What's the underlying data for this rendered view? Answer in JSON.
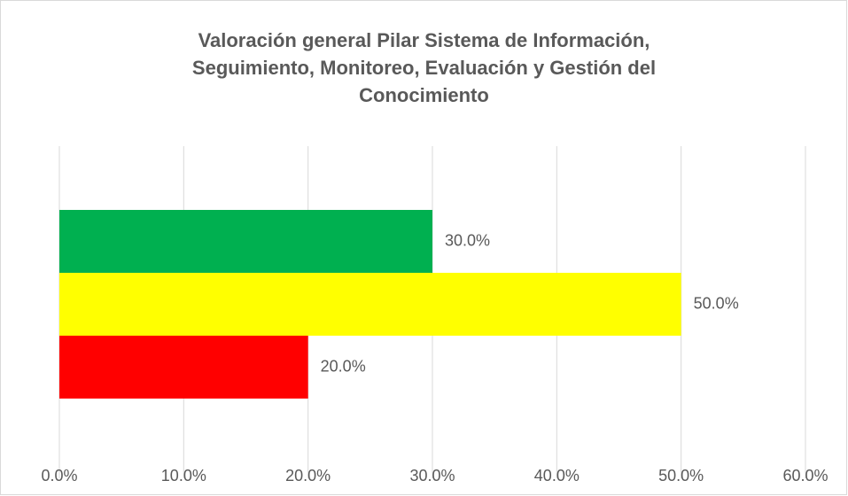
{
  "chart_data": {
    "type": "bar",
    "orientation": "horizontal",
    "title": "Valoración general Pilar Sistema de Información, Seguimiento, Monitoreo, Evaluación y Gestión del Conocimiento",
    "categories": [
      null
    ],
    "series": [
      {
        "color": "#00b050",
        "values": [
          30
        ],
        "value_labels": [
          "30.0%"
        ]
      },
      {
        "color": "#ffff00",
        "values": [
          50
        ],
        "value_labels": [
          "50.0%"
        ]
      },
      {
        "color": "#ff0000",
        "values": [
          20
        ],
        "value_labels": [
          "20.0%"
        ]
      }
    ],
    "xlim": [
      0,
      60
    ],
    "xticks": [
      {
        "value": 0,
        "label": "0.0%"
      },
      {
        "value": 10,
        "label": "10.0%"
      },
      {
        "value": 20,
        "label": "20.0%"
      },
      {
        "value": 30,
        "label": "30.0%"
      },
      {
        "value": 40,
        "label": "40.0%"
      },
      {
        "value": 50,
        "label": "50.0%"
      },
      {
        "value": 60,
        "label": "60.0%"
      }
    ],
    "grid": true
  }
}
